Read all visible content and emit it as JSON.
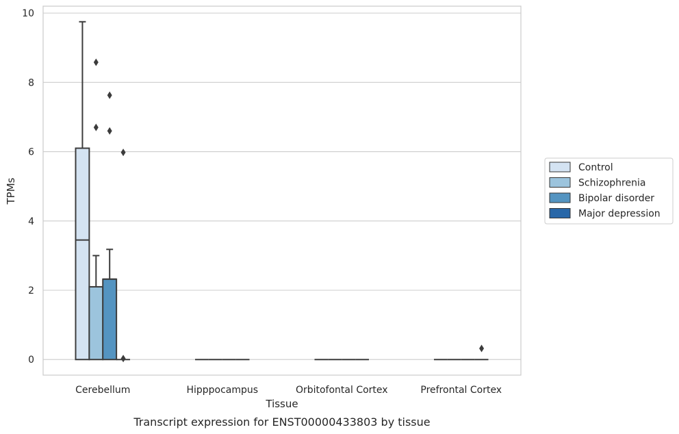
{
  "chart_data": {
    "type": "box",
    "title": "",
    "caption": "Transcript expression for ENST00000433803 by tissue",
    "xlabel": "Tissue",
    "ylabel": "TPMs",
    "ylim": [
      -0.45,
      10.2
    ],
    "yticks": [
      0,
      2,
      4,
      6,
      8,
      10
    ],
    "grid": true,
    "legend_position": "right",
    "categories": [
      "Cerebellum",
      "Hipppocampus",
      "Orbitofontal Cortex",
      "Prefrontal Cortex"
    ],
    "series": [
      {
        "name": "Control",
        "color": "#d4e3f2",
        "boxes": [
          {
            "min": 0,
            "q1": 0,
            "median": 3.45,
            "q3": 6.1,
            "max": 9.75,
            "outliers": []
          },
          {
            "min": 0,
            "q1": 0,
            "median": 0,
            "q3": 0,
            "max": 0,
            "outliers": []
          },
          {
            "min": 0,
            "q1": 0,
            "median": 0,
            "q3": 0,
            "max": 0,
            "outliers": []
          },
          {
            "min": 0,
            "q1": 0,
            "median": 0,
            "q3": 0,
            "max": 0,
            "outliers": []
          }
        ]
      },
      {
        "name": "Schizophrenia",
        "color": "#9cc4dd",
        "boxes": [
          {
            "min": 0,
            "q1": 0,
            "median": 2.1,
            "q3": 2.1,
            "max": 3.0,
            "outliers": [
              6.7,
              8.58
            ]
          },
          {
            "min": 0,
            "q1": 0,
            "median": 0,
            "q3": 0,
            "max": 0,
            "outliers": []
          },
          {
            "min": 0,
            "q1": 0,
            "median": 0,
            "q3": 0,
            "max": 0,
            "outliers": []
          },
          {
            "min": 0,
            "q1": 0,
            "median": 0,
            "q3": 0,
            "max": 0,
            "outliers": []
          }
        ]
      },
      {
        "name": "Bipolar disorder",
        "color": "#5494c1",
        "boxes": [
          {
            "min": 0,
            "q1": 0,
            "median": 2.32,
            "q3": 2.32,
            "max": 3.18,
            "outliers": [
              6.6,
              7.63
            ]
          },
          {
            "min": 0,
            "q1": 0,
            "median": 0,
            "q3": 0,
            "max": 0,
            "outliers": []
          },
          {
            "min": 0,
            "q1": 0,
            "median": 0,
            "q3": 0,
            "max": 0,
            "outliers": []
          },
          {
            "min": 0,
            "q1": 0,
            "median": 0,
            "q3": 0,
            "max": 0,
            "outliers": []
          }
        ]
      },
      {
        "name": "Major depression",
        "color": "#2867a8",
        "boxes": [
          {
            "min": 0,
            "q1": 0,
            "median": 0,
            "q3": 0,
            "max": 0,
            "outliers": [
              5.98,
              0.03
            ]
          },
          {
            "min": 0,
            "q1": 0,
            "median": 0,
            "q3": 0,
            "max": 0,
            "outliers": []
          },
          {
            "min": 0,
            "q1": 0,
            "median": 0,
            "q3": 0,
            "max": 0,
            "outliers": []
          },
          {
            "min": 0,
            "q1": 0,
            "median": 0,
            "q3": 0,
            "max": 0,
            "outliers": [
              0.32
            ]
          }
        ]
      }
    ]
  }
}
